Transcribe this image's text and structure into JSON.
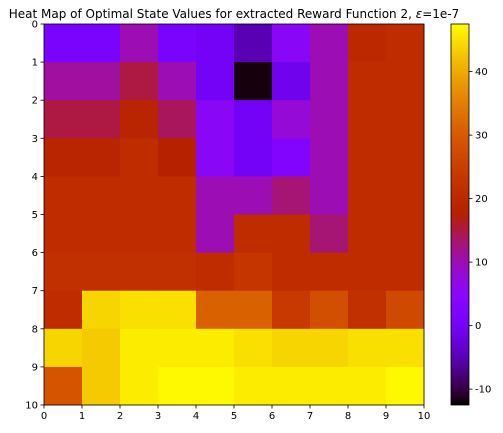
{
  "chart_data": {
    "type": "heatmap",
    "title_prefix": "Heat Map of Optimal State Values for extracted Reward Function 2, ",
    "title_symbol": "ε",
    "title_suffix": "=1e-7",
    "colormap": "gnuplot",
    "vmin": -12.5,
    "vmax": 47.5,
    "x_ticks": [
      "0",
      "1",
      "2",
      "3",
      "4",
      "5",
      "6",
      "7",
      "8",
      "9",
      "10"
    ],
    "y_ticks": [
      "0",
      "1",
      "2",
      "3",
      "4",
      "5",
      "6",
      "7",
      "8",
      "9",
      "10"
    ],
    "colorbar_ticks": [
      -10,
      0,
      10,
      20,
      30,
      40
    ],
    "grid": false,
    "values": [
      [
        1,
        1,
        10,
        1,
        0,
        -5,
        5,
        10,
        20,
        21
      ],
      [
        11,
        11,
        15,
        10,
        0,
        -12,
        -1,
        10,
        21,
        21
      ],
      [
        15,
        15,
        19,
        14,
        5,
        0,
        8,
        10,
        21,
        21
      ],
      [
        19,
        19,
        21,
        18,
        5,
        0,
        3,
        10,
        21,
        21
      ],
      [
        21,
        21,
        21,
        21,
        10,
        10,
        13,
        10,
        21,
        21
      ],
      [
        21,
        21,
        21,
        21,
        10,
        21,
        21,
        13,
        21,
        21
      ],
      [
        22,
        22,
        22,
        22,
        21,
        23,
        21,
        21,
        21,
        21
      ],
      [
        21,
        44,
        45,
        45,
        31,
        31,
        24,
        28,
        22,
        27
      ],
      [
        44,
        43,
        46,
        46,
        46,
        45,
        44,
        44,
        45,
        45
      ],
      [
        29,
        43,
        46,
        47,
        47,
        46,
        46,
        46,
        46,
        47
      ]
    ]
  }
}
